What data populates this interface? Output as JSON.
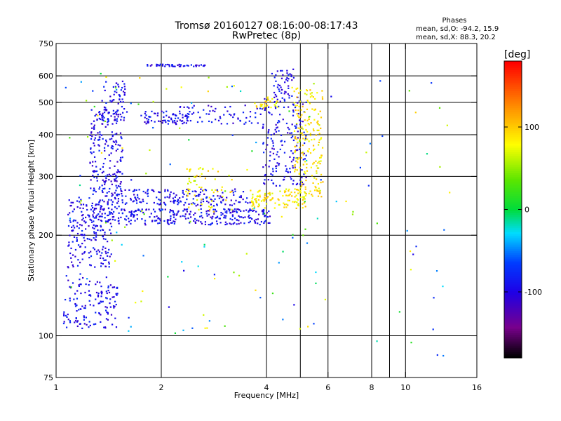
{
  "chart_data": {
    "type": "scatter",
    "title": "Tromsø 20160127 08:16:00-08:17:43",
    "subtitle": "RwPretec (8p)",
    "phase_box": {
      "heading": "Phases",
      "line1": "mean, sd,O: -94.2, 15.9",
      "line2": "mean, sd,X:  88.3, 20.2"
    },
    "xlabel": "Frequency [MHz]",
    "ylabel": "Stationary phase Virtual Height [km]",
    "x_scale": "log",
    "y_scale": "log",
    "xlim": [
      1,
      16
    ],
    "ylim": [
      75,
      750
    ],
    "x_ticks": [
      1,
      2,
      4,
      6,
      8,
      10,
      16
    ],
    "x_tick_labels": [
      "1",
      "2",
      "4",
      "6",
      "8",
      "10",
      "16"
    ],
    "x_gridlines": [
      2,
      4,
      5,
      6,
      8,
      9,
      10,
      16
    ],
    "y_ticks": [
      75,
      100,
      200,
      300,
      400,
      500,
      600,
      750
    ],
    "y_tick_labels": [
      "75",
      "100",
      "200",
      "300",
      "400",
      "500",
      "600",
      "750"
    ],
    "y_gridlines": [
      100,
      200,
      300,
      400,
      500,
      600
    ],
    "grid": true,
    "colorbar": {
      "label": "[deg]",
      "range": [
        -180,
        180
      ],
      "ticks": [
        100,
        0,
        -100
      ],
      "tick_labels": [
        "100",
        "0",
        "-100"
      ]
    },
    "series": [
      {
        "role": "O-mode echoes",
        "color_value": -95,
        "point_groups": [
          {
            "x": [
              1.05,
              1.5
            ],
            "y": [
              105,
              150
            ],
            "count": 140
          },
          {
            "x": [
              1.08,
              1.45
            ],
            "y": [
              160,
              260
            ],
            "count": 200
          },
          {
            "x": [
              1.25,
              1.55
            ],
            "y": [
              220,
              480
            ],
            "count": 260
          },
          {
            "x": [
              1.35,
              1.6
            ],
            "y": [
              440,
              580
            ],
            "count": 60
          },
          {
            "x": [
              1.5,
              4.1
            ],
            "y": [
              215,
              240
            ],
            "count": 260
          },
          {
            "x": [
              1.45,
              3.6
            ],
            "y": [
              245,
              275
            ],
            "count": 180
          },
          {
            "x": [
              1.75,
              2.4
            ],
            "y": [
              430,
              470
            ],
            "count": 70
          },
          {
            "x": [
              2.1,
              3.9
            ],
            "y": [
              430,
              490
            ],
            "count": 70
          },
          {
            "x": [
              3.9,
              5.2
            ],
            "y": [
              280,
              520
            ],
            "count": 170
          },
          {
            "x": [
              4.2,
              4.8
            ],
            "y": [
              500,
              630
            ],
            "count": 50
          },
          {
            "x": [
              1.8,
              2.7
            ],
            "y": [
              640,
              650
            ],
            "count": 45
          }
        ]
      },
      {
        "role": "X-mode echoes",
        "color_value": 88,
        "point_groups": [
          {
            "x": [
              4.8,
              5.8
            ],
            "y": [
              260,
              560
            ],
            "count": 190
          },
          {
            "x": [
              3.6,
              5.2
            ],
            "y": [
              240,
              275
            ],
            "count": 110
          },
          {
            "x": [
              2.35,
              3.2
            ],
            "y": [
              235,
              320
            ],
            "count": 60
          },
          {
            "x": [
              3.7,
              4.3
            ],
            "y": [
              480,
              520
            ],
            "count": 30
          }
        ]
      },
      {
        "role": "scattered points",
        "color_value": 0,
        "point_groups": [
          {
            "x": [
              1.05,
              6.0
            ],
            "y": [
              100,
              620
            ],
            "count": 130
          },
          {
            "x": [
              6.0,
              13.5
            ],
            "y": [
              85,
              620
            ],
            "count": 35
          }
        ]
      }
    ]
  }
}
